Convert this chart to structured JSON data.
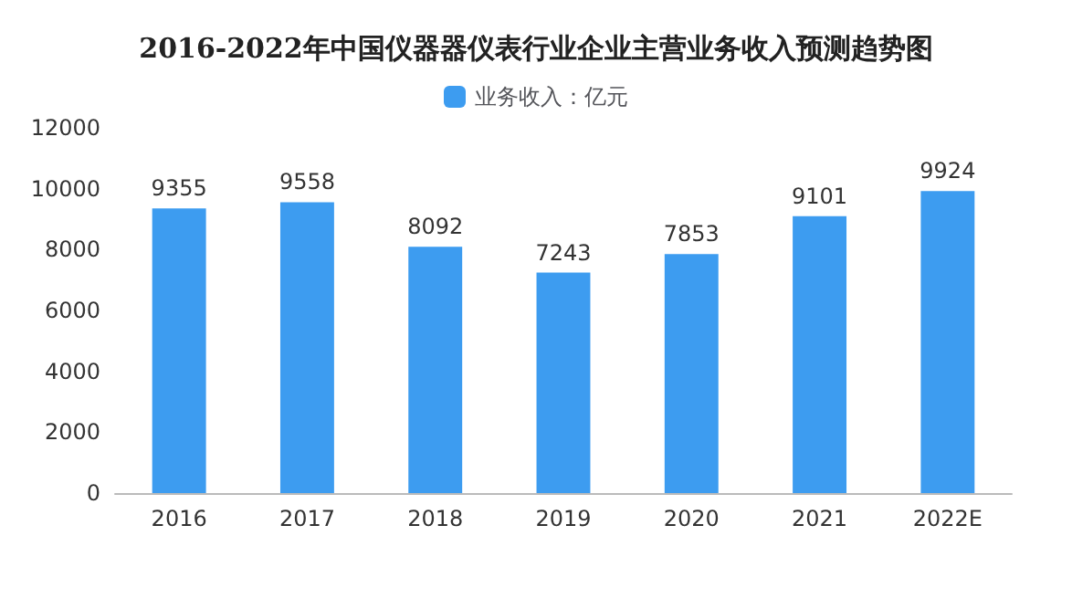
{
  "chart_data": {
    "type": "bar",
    "title": "2016-2022年中国仪器器仪表行业企业主营业务收入预测趋势图",
    "categories": [
      "2016",
      "2017",
      "2018",
      "2019",
      "2020",
      "2021",
      "2022E"
    ],
    "series": [
      {
        "name": "业务收入：亿元",
        "color": "#3d9cf0",
        "values": [
          9355,
          9558,
          8092,
          7243,
          7853,
          9101,
          9924
        ]
      }
    ],
    "ylim": [
      0,
      12000
    ],
    "yticks": [
      0,
      2000,
      4000,
      6000,
      8000,
      10000,
      12000
    ],
    "grid": false,
    "legend": "top",
    "data_labels": true
  }
}
